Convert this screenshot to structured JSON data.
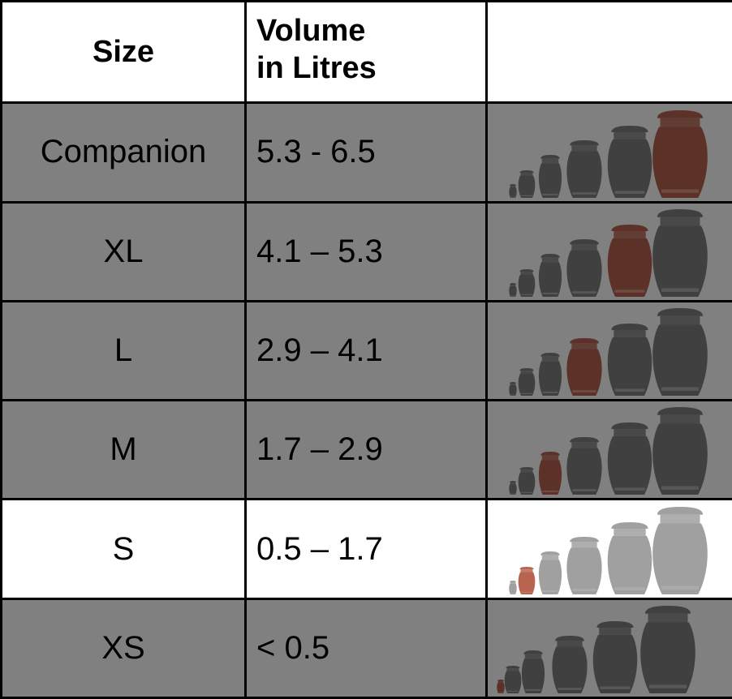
{
  "header": {
    "size_label": "Size",
    "volume_label_line1": "Volume",
    "volume_label_line2": "in Litres",
    "image_label": ""
  },
  "rows": [
    {
      "size": "Companion",
      "volume": "5.3 - 6.5",
      "highlight_urn_index": 5,
      "background": "#808080"
    },
    {
      "size": "XL",
      "volume": "4.1 – 5.3",
      "highlight_urn_index": 4,
      "background": "#808080"
    },
    {
      "size": "L",
      "volume": "2.9 – 4.1",
      "highlight_urn_index": 3,
      "background": "#808080"
    },
    {
      "size": "M",
      "volume": "1.7 – 2.9",
      "highlight_urn_index": 2,
      "background": "#808080"
    },
    {
      "size": "S",
      "volume": "0.5 – 1.7",
      "highlight_urn_index": 1,
      "background": "#ffffff"
    },
    {
      "size": "XS",
      "volume": "< 0.5",
      "highlight_urn_index": 0,
      "background": "#808080"
    }
  ],
  "colors": {
    "grey_background": "#808080",
    "white_background": "#ffffff",
    "urn_dark": "#404040",
    "urn_light": "#a0a0a0",
    "urn_highlight": "#5c3128",
    "urn_highlight_light": "#b86450",
    "border": "#000000"
  }
}
